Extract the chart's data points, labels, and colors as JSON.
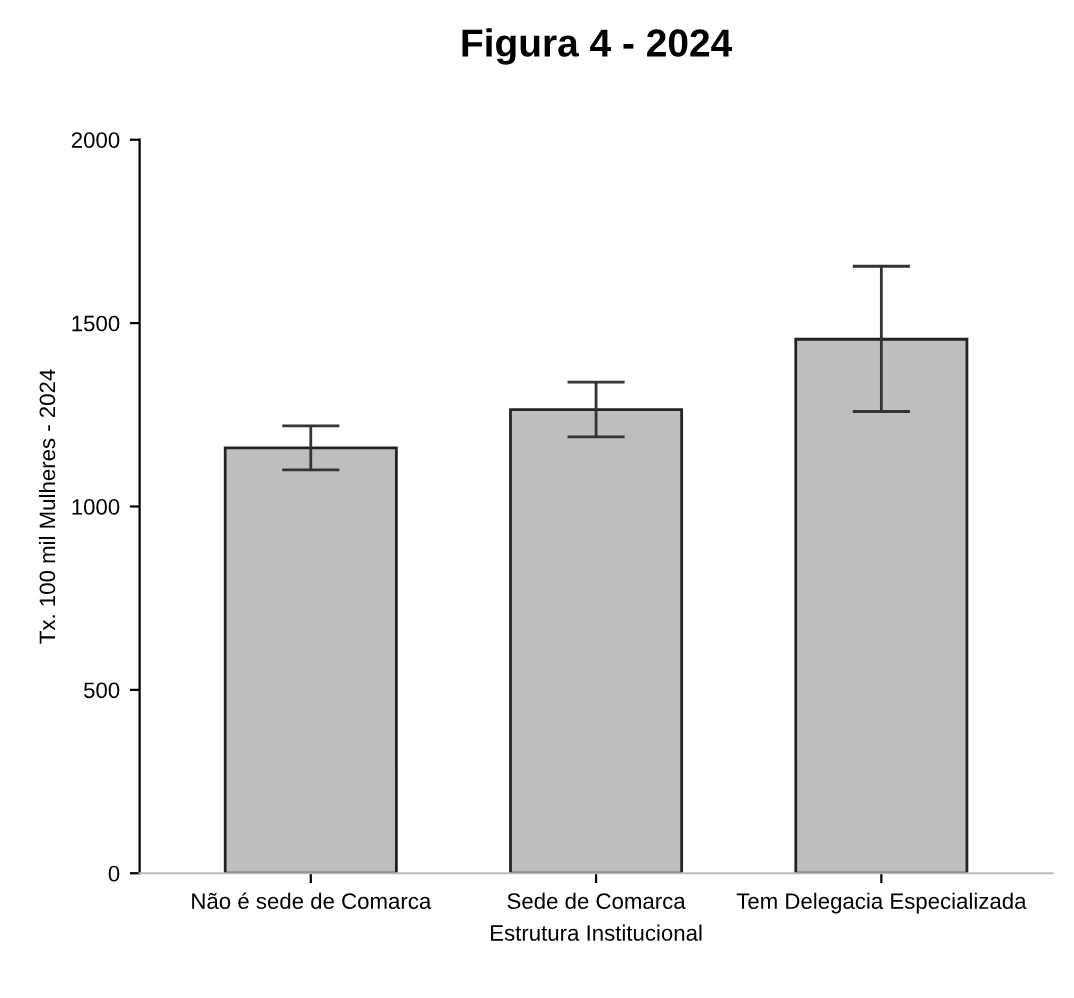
{
  "chart_data": {
    "type": "bar",
    "title": "Figura 4 - 2024",
    "xlabel": "Estrutura Institucional",
    "ylabel": "Tx. 100 mil Mulheres - 2024",
    "categories": [
      "Não é sede de Comarca",
      "Sede de Comarca",
      "Tem Delegacia Especializada"
    ],
    "values": [
      1160,
      1264,
      1456
    ],
    "errors": [
      [
        1100,
        1220
      ],
      [
        1190,
        1339
      ],
      [
        1259,
        1655
      ]
    ],
    "color": "#bebebe",
    "ylim": [
      0,
      2000
    ],
    "yticks": [
      0,
      500,
      1000,
      1500,
      2000
    ],
    "grid": false
  }
}
